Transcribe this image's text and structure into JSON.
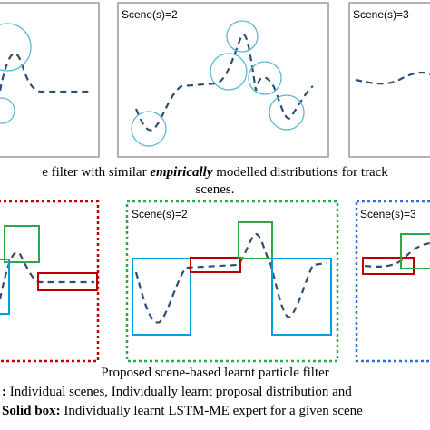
{
  "top_panels": {
    "scene_labels": [
      "Scene(s)=2",
      "Scene(s)=3"
    ]
  },
  "caption_top": {
    "before": "e filter with similar ",
    "emphasis": "empirically",
    "after": " modelled distributions for track",
    "line2": "scenes."
  },
  "bottom_panels": {
    "scene_labels": [
      "Scene(s)=2",
      "Scene(s)=3"
    ]
  },
  "caption_bottom": {
    "title": "Proposed scene-based learnt particle filter",
    "line1_bold": ":",
    "line1_text": " Individual scenes, Individually learnt proposal distribution and",
    "line2_bold": "Solid box:",
    "line2_text": " Individually learnt LSTM-ME  expert for a given scene"
  }
}
